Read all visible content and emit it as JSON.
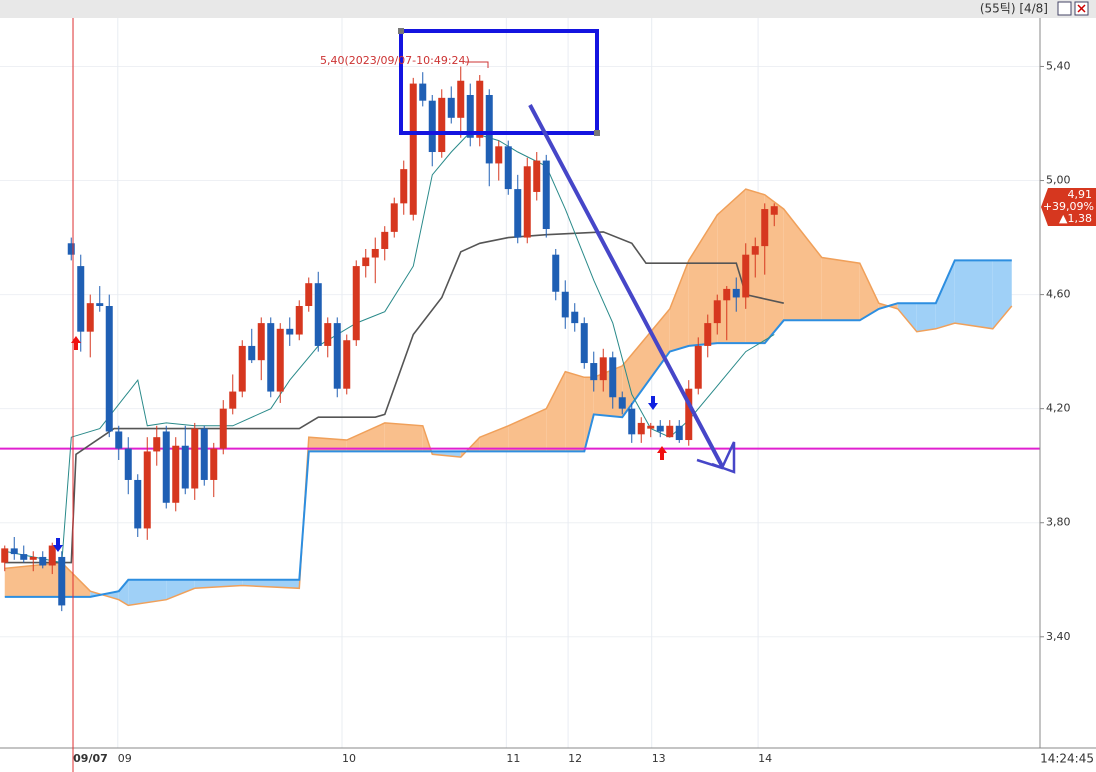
{
  "header": {
    "status": "(55틱) [4/8]"
  },
  "chart_data": {
    "type": "candlestick",
    "up_color": "#d6371f",
    "down_color": "#1f5fb4",
    "open": [
      3.66,
      3.71,
      3.69,
      3.67,
      3.68,
      3.65,
      3.68,
      4.78,
      4.7,
      4.47,
      4.57,
      4.56,
      4.12,
      4.06,
      3.95,
      3.78,
      4.05,
      4.12,
      3.87,
      4.07,
      3.92,
      4.13,
      3.95,
      4.06,
      4.2,
      4.26,
      4.42,
      4.37,
      4.5,
      4.26,
      4.48,
      4.46,
      4.56,
      4.64,
      4.42,
      4.5,
      4.27,
      4.44,
      4.7,
      4.73,
      4.76,
      4.82,
      4.92,
      4.88,
      5.34,
      5.28,
      5.1,
      5.29,
      5.22,
      5.3,
      5.15,
      5.3,
      5.06,
      5.12,
      4.97,
      4.8,
      4.96,
      5.07,
      4.74,
      4.61,
      4.54,
      4.5,
      4.36,
      4.3,
      4.38,
      4.24,
      4.2,
      4.11,
      4.13,
      4.14,
      4.1,
      4.14,
      4.09,
      4.27,
      4.42,
      4.5,
      4.58,
      4.62,
      4.59,
      4.74,
      4.77,
      4.88
    ],
    "high": [
      3.72,
      3.75,
      3.72,
      3.7,
      3.7,
      3.73,
      3.7,
      4.8,
      4.74,
      4.6,
      4.63,
      4.6,
      4.14,
      4.1,
      3.97,
      4.1,
      4.14,
      4.14,
      4.1,
      4.14,
      4.15,
      4.14,
      4.08,
      4.23,
      4.32,
      4.44,
      4.48,
      4.52,
      4.52,
      4.5,
      4.52,
      4.58,
      4.66,
      4.68,
      4.52,
      4.52,
      4.46,
      4.72,
      4.76,
      4.8,
      4.84,
      4.94,
      5.07,
      5.36,
      5.38,
      5.3,
      5.32,
      5.33,
      5.4,
      5.34,
      5.37,
      5.32,
      5.14,
      5.14,
      5.02,
      5.08,
      5.1,
      5.09,
      4.76,
      4.65,
      4.57,
      4.52,
      4.4,
      4.41,
      4.4,
      4.26,
      4.22,
      4.17,
      4.15,
      4.16,
      4.16,
      4.16,
      4.3,
      4.45,
      4.53,
      4.6,
      4.63,
      4.66,
      4.78,
      4.8,
      4.92,
      4.92
    ],
    "low": [
      3.63,
      3.67,
      3.66,
      3.63,
      3.64,
      3.62,
      3.49,
      4.72,
      4.4,
      4.38,
      4.54,
      4.1,
      4.02,
      3.9,
      3.75,
      3.74,
      4.0,
      3.85,
      3.84,
      3.9,
      3.88,
      3.93,
      3.89,
      4.04,
      4.18,
      4.24,
      4.36,
      4.3,
      4.24,
      4.22,
      4.42,
      4.44,
      4.54,
      4.4,
      4.38,
      4.24,
      4.25,
      4.42,
      4.66,
      4.64,
      4.72,
      4.8,
      4.88,
      4.86,
      5.26,
      5.05,
      5.08,
      5.2,
      5.15,
      5.12,
      5.12,
      4.98,
      5.0,
      4.95,
      4.78,
      4.78,
      4.93,
      4.8,
      4.58,
      4.48,
      4.47,
      4.34,
      4.26,
      4.26,
      4.2,
      4.18,
      4.08,
      4.08,
      4.1,
      4.1,
      4.1,
      4.08,
      4.07,
      4.25,
      4.38,
      4.46,
      4.44,
      4.54,
      4.55,
      4.66,
      4.67,
      4.84
    ],
    "close": [
      3.71,
      3.69,
      3.67,
      3.68,
      3.65,
      3.72,
      3.51,
      4.74,
      4.47,
      4.57,
      4.56,
      4.12,
      4.06,
      3.95,
      3.78,
      4.05,
      4.1,
      3.87,
      4.07,
      3.92,
      4.13,
      3.95,
      4.06,
      4.2,
      4.26,
      4.42,
      4.37,
      4.5,
      4.26,
      4.48,
      4.46,
      4.56,
      4.64,
      4.42,
      4.5,
      4.27,
      4.44,
      4.7,
      4.73,
      4.76,
      4.82,
      4.92,
      5.04,
      5.34,
      5.28,
      5.1,
      5.29,
      5.22,
      5.35,
      5.15,
      5.35,
      5.06,
      5.12,
      4.97,
      4.8,
      5.05,
      5.07,
      4.83,
      4.61,
      4.52,
      4.5,
      4.36,
      4.3,
      4.38,
      4.24,
      4.2,
      4.11,
      4.15,
      4.14,
      4.12,
      4.14,
      4.09,
      4.27,
      4.42,
      4.5,
      4.58,
      4.62,
      4.59,
      4.74,
      4.77,
      4.9,
      4.91
    ],
    "lines": [
      {
        "color": "#555555",
        "x": [
          0,
          7,
          7.5,
          11.5,
          31,
          33,
          39,
          40,
          43,
          46,
          48,
          50,
          53,
          57,
          63,
          66,
          67.5,
          77,
          78,
          82
        ],
        "values": [
          3.66,
          3.66,
          4.04,
          4.13,
          4.13,
          4.17,
          4.17,
          4.18,
          4.46,
          4.59,
          4.75,
          4.78,
          4.8,
          4.81,
          4.82,
          4.78,
          4.71,
          4.71,
          4.6,
          4.57
        ]
      },
      {
        "color": "#2a8a8a",
        "x": [
          0,
          6,
          7,
          10,
          14,
          15,
          17,
          20,
          24,
          28,
          30,
          33,
          37,
          40,
          43,
          45,
          47,
          49,
          52,
          54,
          57,
          59,
          62,
          64,
          66,
          68,
          70,
          72,
          75,
          78,
          81
        ],
        "values": [
          3.7,
          3.66,
          4.1,
          4.13,
          4.3,
          4.14,
          4.15,
          4.14,
          4.14,
          4.2,
          4.3,
          4.42,
          4.5,
          4.54,
          4.7,
          5.02,
          5.1,
          5.17,
          5.14,
          5.1,
          5.05,
          4.9,
          4.65,
          4.5,
          4.25,
          4.13,
          4.1,
          4.16,
          4.28,
          4.4,
          4.46
        ]
      }
    ],
    "cloud": {
      "up_color": "#f9bf8c",
      "down_color": "#9fd0f7",
      "a_color": "#f0a05a",
      "b_color": "#2d8ee0",
      "x": [
        0,
        6,
        9,
        12,
        13,
        17,
        20,
        25,
        31,
        32,
        36,
        40,
        44,
        45,
        48,
        50,
        53,
        57,
        59,
        61,
        62,
        65,
        70,
        72,
        75,
        78,
        80,
        82,
        86,
        90,
        92,
        94,
        96,
        98,
        100,
        104,
        106
      ],
      "span_a": [
        3.64,
        3.66,
        3.56,
        3.53,
        3.51,
        3.53,
        3.57,
        3.58,
        3.57,
        4.1,
        4.09,
        4.15,
        4.14,
        4.04,
        4.03,
        4.1,
        4.14,
        4.2,
        4.33,
        4.31,
        4.31,
        4.35,
        4.55,
        4.72,
        4.88,
        4.97,
        4.95,
        4.9,
        4.73,
        4.71,
        4.57,
        4.55,
        4.47,
        4.48,
        4.5,
        4.48,
        4.56
      ],
      "span_b": [
        3.54,
        3.54,
        3.54,
        3.56,
        3.6,
        3.6,
        3.6,
        3.6,
        3.6,
        4.05,
        4.05,
        4.05,
        4.05,
        4.05,
        4.05,
        4.05,
        4.05,
        4.05,
        4.05,
        4.05,
        4.18,
        4.17,
        4.4,
        4.42,
        4.43,
        4.43,
        4.43,
        4.51,
        4.51,
        4.51,
        4.55,
        4.57,
        4.57,
        4.57,
        4.72,
        4.72,
        4.72
      ]
    },
    "hlines": [
      {
        "value": 4.06,
        "color": "#e020d0"
      }
    ],
    "ylim": [
      3.01,
      5.57
    ],
    "yticks": [
      {
        "value": 3.4,
        "label": "3,40"
      },
      {
        "value": 3.8,
        "label": "3,80"
      },
      {
        "value": 4.2,
        "label": "4,20"
      },
      {
        "value": 4.6,
        "label": "4,60"
      },
      {
        "value": 5.0,
        "label": "5,00"
      },
      {
        "value": 5.4,
        "label": "5,40"
      }
    ],
    "xlim": [
      -0.5,
      108.5
    ],
    "xticks": [
      {
        "value": 7.2,
        "label": "09/07"
      },
      {
        "value": 11.9,
        "label": "09"
      },
      {
        "value": 35.5,
        "label": "10"
      },
      {
        "value": 52.8,
        "label": "11"
      },
      {
        "value": 59.3,
        "label": "12"
      },
      {
        "value": 68.1,
        "label": "13"
      },
      {
        "value": 79.3,
        "label": "14"
      }
    ],
    "annotation": "5,40(2023/09/07-10:49:24)",
    "price_tag": {
      "price": "4,91",
      "change_pct": "+39,09%",
      "change": "▲1,38"
    },
    "time": "14:24:45"
  }
}
